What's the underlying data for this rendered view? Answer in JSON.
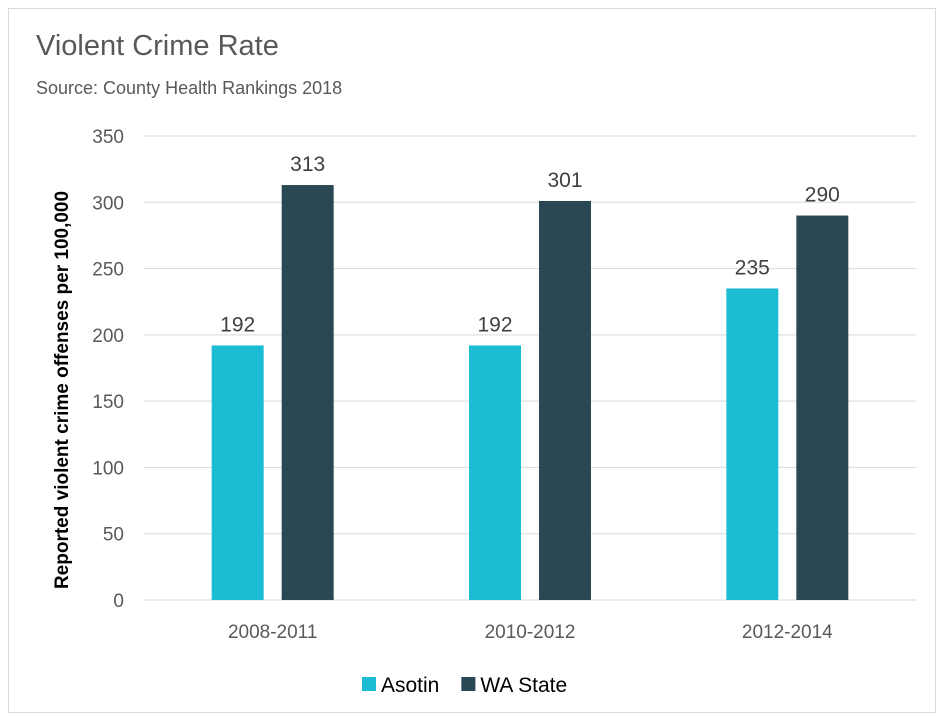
{
  "chart_data": {
    "type": "bar",
    "title": "Violent Crime Rate",
    "subtitle": "Source: County Health Rankings 2018",
    "categories": [
      "2008-2011",
      "2010-2012",
      "2012-2014"
    ],
    "series": [
      {
        "name": "Asotin",
        "values": [
          192,
          192,
          235
        ],
        "color": "#1bbcd4"
      },
      {
        "name": "WA State",
        "values": [
          313,
          301,
          290
        ],
        "color": "#294853"
      }
    ],
    "xlabel": "",
    "ylabel": "Reported violent crime offenses per 100,000",
    "ylim": [
      0,
      350
    ],
    "yticks": [
      0,
      50,
      100,
      150,
      200,
      250,
      300,
      350
    ],
    "grid": true,
    "legend_position": "bottom",
    "gridline_color": "#d9d9d9"
  }
}
